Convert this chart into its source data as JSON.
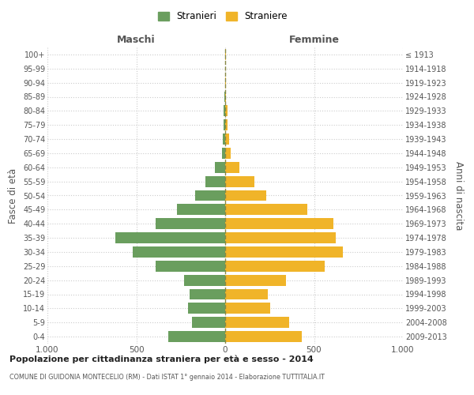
{
  "age_groups": [
    "0-4",
    "5-9",
    "10-14",
    "15-19",
    "20-24",
    "25-29",
    "30-34",
    "35-39",
    "40-44",
    "45-49",
    "50-54",
    "55-59",
    "60-64",
    "65-69",
    "70-74",
    "75-79",
    "80-84",
    "85-89",
    "90-94",
    "95-99",
    "100+"
  ],
  "birth_years": [
    "2009-2013",
    "2004-2008",
    "1999-2003",
    "1994-1998",
    "1989-1993",
    "1984-1988",
    "1979-1983",
    "1974-1978",
    "1969-1973",
    "1964-1968",
    "1959-1963",
    "1954-1958",
    "1949-1953",
    "1944-1948",
    "1939-1943",
    "1934-1938",
    "1929-1933",
    "1924-1928",
    "1919-1923",
    "1914-1918",
    "≤ 1913"
  ],
  "maschi": [
    320,
    185,
    210,
    200,
    230,
    390,
    520,
    620,
    390,
    270,
    170,
    110,
    60,
    20,
    15,
    10,
    8,
    3,
    2,
    1,
    2
  ],
  "femmine": [
    430,
    360,
    255,
    240,
    340,
    560,
    660,
    620,
    610,
    460,
    230,
    165,
    80,
    30,
    22,
    15,
    12,
    5,
    3,
    2,
    3
  ],
  "maschi_color": "#6a9e5e",
  "femmine_color": "#f0b429",
  "background_color": "#ffffff",
  "grid_color": "#cccccc",
  "title1": "Popolazione per cittadinanza straniera per età e sesso - 2014",
  "title2": "COMUNE DI GUIDONIA MONTECELIO (RM) - Dati ISTAT 1° gennaio 2014 - Elaborazione TUTTITALIA.IT",
  "xlabel_left": "Maschi",
  "xlabel_right": "Femmine",
  "ylabel_left": "Fasce di età",
  "ylabel_right": "Anni di nascita",
  "legend_maschi": "Stranieri",
  "legend_femmine": "Straniere",
  "xlim": 1000,
  "xtick_labels": [
    "1.000",
    "500",
    "0",
    "500",
    "1.000"
  ]
}
